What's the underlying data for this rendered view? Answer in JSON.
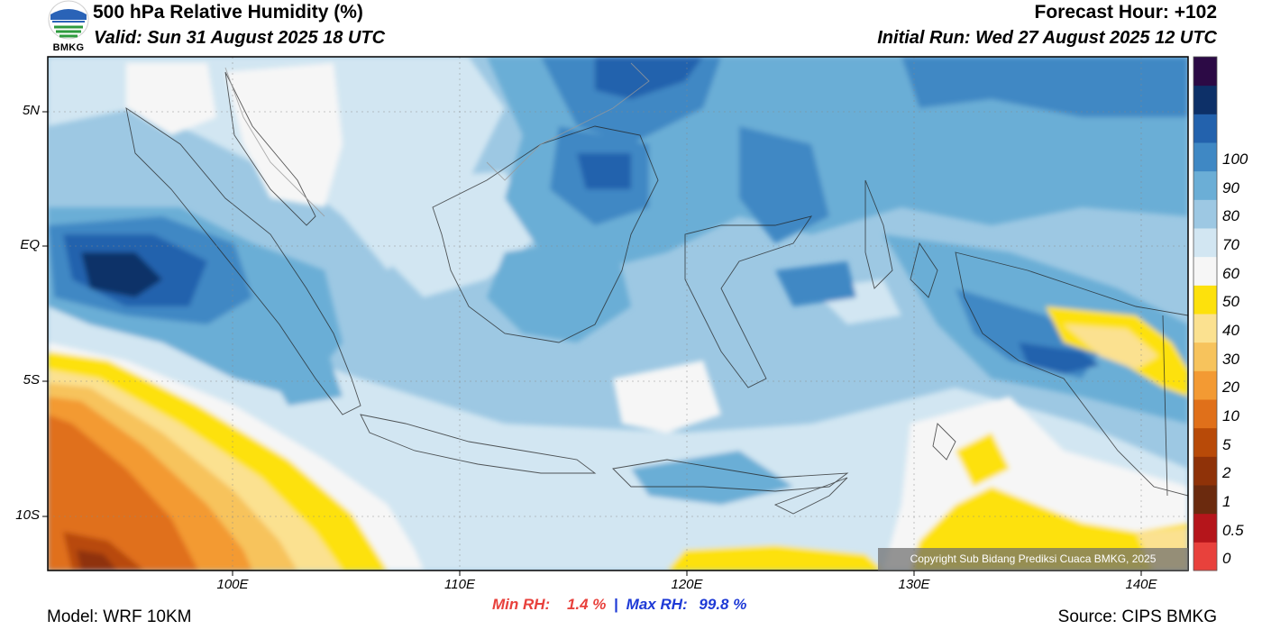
{
  "header": {
    "title": "500 hPa Relative Humidity (%)",
    "valid": "Valid: Sun 31 August 2025 18 UTC",
    "forecast_hour": "Forecast Hour: +102",
    "initial_run": "Initial Run: Wed 27 August 2025 12 UTC"
  },
  "logo": {
    "text": "BMKG",
    "icon": "bmkg-logo-icon"
  },
  "map": {
    "extent": {
      "lon_min": 92,
      "lon_max": 142,
      "lat_min": -12,
      "lat_max": 7
    },
    "lat_labels": [
      {
        "lat": 5,
        "text": "5N"
      },
      {
        "lat": 0,
        "text": "EQ"
      },
      {
        "lat": -5,
        "text": "5S"
      },
      {
        "lat": -10,
        "text": "10S"
      }
    ],
    "lon_labels": [
      {
        "lon": 100,
        "text": "100E"
      },
      {
        "lon": 110,
        "text": "110E"
      },
      {
        "lon": 120,
        "text": "120E"
      },
      {
        "lon": 130,
        "text": "130E"
      },
      {
        "lon": 140,
        "text": "140E"
      }
    ]
  },
  "colorbar": {
    "labels": [
      "0",
      "0.5",
      "1",
      "2",
      "5",
      "10",
      "20",
      "30",
      "40",
      "50",
      "60",
      "70",
      "80",
      "90",
      "100"
    ],
    "colors": [
      "#e8413c",
      "#b5151b",
      "#6b2a0e",
      "#8f3208",
      "#b84a08",
      "#e0701a",
      "#f39a33",
      "#f7c35c",
      "#fbe190",
      "#fde10c",
      "#f6f6f6",
      "#d2e6f2",
      "#9dc8e3",
      "#6baed6",
      "#3f88c4",
      "#2362ad",
      "#0d3068",
      "#2c0a45"
    ]
  },
  "stats": {
    "min_label": "Min RH:",
    "min_value": "1.4 %",
    "separator": "|",
    "max_label": "Max RH:",
    "max_value": "99.8 %"
  },
  "footer": {
    "model": "Model: WRF 10KM",
    "source": "Source: CIPS BMKG",
    "copyright": "Copyright Sub Bidang Prediksi Cuaca BMKG, 2025"
  }
}
